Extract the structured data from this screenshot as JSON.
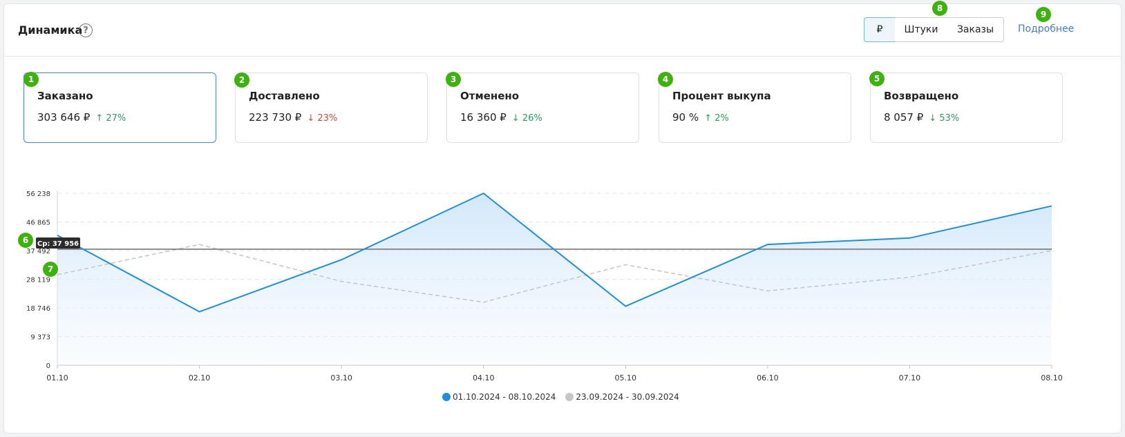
{
  "header": {
    "title": "Динамика",
    "help_icon": "?",
    "segments": [
      "₽",
      "Штуки",
      "Заказы"
    ],
    "more_link": "Подробнее"
  },
  "badges": [
    "1",
    "2",
    "3",
    "4",
    "5",
    "6",
    "7",
    "8",
    "9"
  ],
  "cards": [
    {
      "title": "Заказано",
      "value": "303 646 ₽",
      "change": "↑ 27%",
      "direction": "up",
      "active": true
    },
    {
      "title": "Доставлено",
      "value": "223 730 ₽",
      "change": "↓ 23%",
      "direction": "down",
      "active": false
    },
    {
      "title": "Отменено",
      "value": "16 360 ₽",
      "change": "↓ 26%",
      "direction": "up",
      "active": false
    },
    {
      "title": "Процент выкупа",
      "value": "90 %",
      "change": "↑ 2%",
      "direction": "up",
      "active": false
    },
    {
      "title": "Возвращено",
      "value": "8 057 ₽",
      "change": "↓ 53%",
      "direction": "up",
      "active": false
    }
  ],
  "colors": {
    "current_series": "#1a8ee0",
    "previous_series": "#c6c7c9",
    "average_line": "#777777",
    "up": "#2e9b56",
    "down": "#d0483d",
    "badge": "#3db20c"
  },
  "chart_data": {
    "type": "area",
    "categories": [
      "01.10",
      "02.10",
      "03.10",
      "04.10",
      "05.10",
      "06.10",
      "07.10",
      "08.10"
    ],
    "yticks": [
      "56 238",
      "46 865",
      "37 492",
      "28 119",
      "18 746",
      "9 373",
      "0"
    ],
    "ylim": [
      0,
      56238
    ],
    "series": [
      {
        "name": "01.10.2024 - 08.10.2024",
        "style": "solid-area",
        "values": [
          42500,
          17500,
          34500,
          56238,
          19300,
          39500,
          41600,
          52100
        ]
      },
      {
        "name": "23.09.2024 - 30.09.2024",
        "style": "dashed",
        "values": [
          29600,
          39500,
          27400,
          20600,
          32900,
          24300,
          28800,
          37500
        ]
      }
    ],
    "average": {
      "label": "Ср: 37 956",
      "value": 37956
    },
    "grid": true
  }
}
